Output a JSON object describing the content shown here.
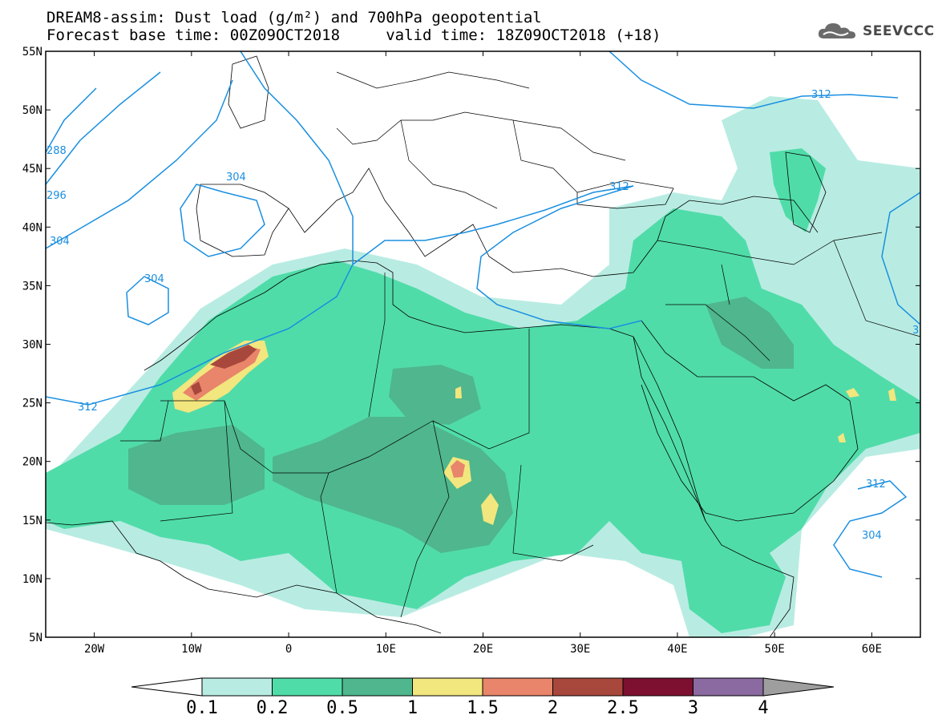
{
  "title": {
    "line1": "DREAM8-assim: Dust load (g/m²) and 700hPa geopotential",
    "line2": "Forecast base time: 00Z09OCT2018     valid time: 18Z09OCT2018 (+18)"
  },
  "logo": {
    "text": "SEEVCCC",
    "icon": "cloud-icon"
  },
  "map": {
    "lon_range": [
      -25,
      65
    ],
    "lat_range": [
      5,
      55
    ],
    "lat_labels": [
      "55N",
      "50N",
      "45N",
      "40N",
      "35N",
      "30N",
      "25N",
      "20N",
      "15N",
      "10N",
      "5N"
    ],
    "lon_labels": [
      "20W",
      "10W",
      "0",
      "10E",
      "20E",
      "30E",
      "40E",
      "50E",
      "60E"
    ],
    "contour_labels": [
      "312",
      "304",
      "304",
      "312",
      "312",
      "312",
      "304",
      "304",
      "288",
      "296",
      "3"
    ]
  },
  "colorbar": {
    "ticks": [
      "0.1",
      "0.2",
      "0.5",
      "1",
      "1.5",
      "2",
      "2.5",
      "3",
      "4"
    ],
    "colors": [
      "#ffffff",
      "#b8ece2",
      "#50dca9",
      "#4fb68d",
      "#f2e67e",
      "#e8856a",
      "#a8473c",
      "#7d0f30",
      "#8a6aa0",
      "#9e9e9e"
    ]
  },
  "colors": {
    "geopotential": "#1a8fe0",
    "dust_01": "#b8ece2",
    "dust_02": "#50dca9",
    "dust_05": "#4fb68d",
    "dust_1": "#f2e67e",
    "dust_15": "#e8856a",
    "dust_2": "#a8473c"
  }
}
